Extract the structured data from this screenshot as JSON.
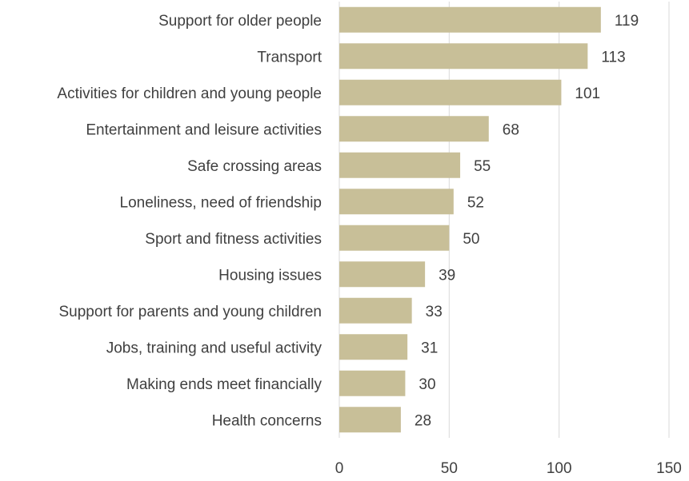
{
  "chart_data": {
    "type": "bar",
    "orientation": "horizontal",
    "categories": [
      "Support for older people",
      "Transport",
      "Activities for children and young people",
      "Entertainment and leisure activities",
      "Safe crossing areas",
      "Loneliness, need of friendship",
      "Sport and fitness activities",
      "Housing issues",
      "Support for parents and young children",
      "Jobs, training and useful activity",
      "Making ends meet financially",
      "Health concerns"
    ],
    "values": [
      119,
      113,
      101,
      68,
      55,
      52,
      50,
      39,
      33,
      31,
      30,
      28
    ],
    "data_labels": [
      "119",
      "113",
      "101",
      "68",
      "55",
      "52",
      "50",
      "39",
      "33",
      "31",
      "30",
      "28"
    ],
    "x_ticks": [
      "0",
      "50",
      "100",
      "150"
    ],
    "xlim": [
      0,
      150
    ],
    "title": "",
    "xlabel": "",
    "ylabel": "",
    "grid": "vertical",
    "legend": "none",
    "bar_color": "#c8bf98",
    "grid_color": "#d9d9d9",
    "text_color": "#404040"
  }
}
